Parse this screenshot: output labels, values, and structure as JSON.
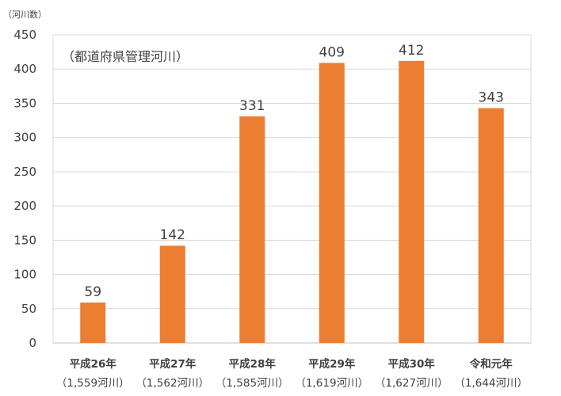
{
  "chart_data": {
    "type": "bar",
    "y_unit": "（河川数）",
    "annotation": "（都道府県管理河川）",
    "categories": [
      "平成26年",
      "平成27年",
      "平成28年",
      "平成29年",
      "平成30年",
      "令和元年"
    ],
    "subcategories": [
      "（1,559河川）",
      "（1,562河川）",
      "（1,585河川）",
      "（1,619河川）",
      "（1,627河川）",
      "（1,644河川）"
    ],
    "values": [
      59,
      142,
      331,
      409,
      412,
      343
    ],
    "ylim": [
      0,
      450
    ],
    "yticks": [
      0,
      50,
      100,
      150,
      200,
      250,
      300,
      350,
      400,
      450
    ],
    "grid": true,
    "bar_color": "#ED7D31",
    "grid_color": "#D9D9D9",
    "axis_color": "#404040"
  }
}
